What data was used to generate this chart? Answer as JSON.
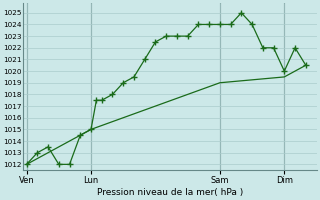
{
  "background_color": "#cce8e8",
  "grid_color": "#aacccc",
  "line_color": "#1a6b1a",
  "marker_color": "#1a6b1a",
  "xlabel": "Pression niveau de la mer( hPa )",
  "ylim": [
    1011.5,
    1025.8
  ],
  "yticks": [
    1012,
    1013,
    1014,
    1015,
    1016,
    1017,
    1018,
    1019,
    1020,
    1021,
    1022,
    1023,
    1024,
    1025
  ],
  "xtick_labels": [
    "Ven",
    "Lun",
    "Sam",
    "Dim"
  ],
  "xtick_positions": [
    0,
    3,
    9,
    12
  ],
  "vline_positions": [
    0,
    3,
    9,
    12
  ],
  "xlim": [
    -0.15,
    13.5
  ],
  "line1": [
    [
      0,
      1012
    ],
    [
      0.5,
      1013
    ],
    [
      1,
      1013.5
    ],
    [
      1.5,
      1012
    ],
    [
      2,
      1012
    ],
    [
      2.5,
      1014.5
    ],
    [
      3,
      1015
    ],
    [
      3.25,
      1017.5
    ],
    [
      3.5,
      1017.5
    ],
    [
      4.0,
      1018
    ],
    [
      4.5,
      1019
    ],
    [
      5.0,
      1019.5
    ],
    [
      5.5,
      1021
    ],
    [
      6.0,
      1022.5
    ],
    [
      6.5,
      1023
    ],
    [
      7.0,
      1023
    ],
    [
      7.5,
      1023
    ],
    [
      8.0,
      1024
    ],
    [
      8.5,
      1024
    ],
    [
      9.0,
      1024
    ],
    [
      9.5,
      1024
    ],
    [
      10.0,
      1025
    ],
    [
      10.5,
      1024
    ],
    [
      11.0,
      1022
    ],
    [
      11.5,
      1022
    ],
    [
      12.0,
      1020
    ],
    [
      12.5,
      1022
    ],
    [
      13.0,
      1020.5
    ]
  ],
  "line2": [
    [
      0,
      1012
    ],
    [
      3,
      1015
    ],
    [
      6,
      1017
    ],
    [
      9,
      1019
    ],
    [
      12,
      1019.5
    ],
    [
      13,
      1020.5
    ]
  ]
}
